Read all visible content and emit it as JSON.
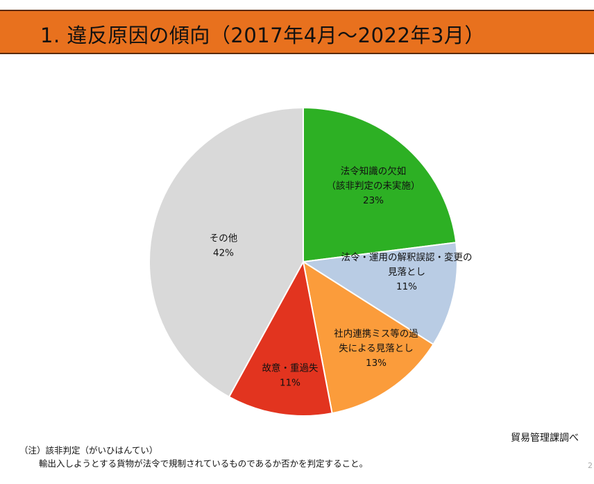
{
  "header": {
    "title": "1. 違反原因の傾向（2017年4月～2022年3月）"
  },
  "chart_data": {
    "type": "pie",
    "start_angle_deg": 0,
    "direction": "clockwise",
    "slices": [
      {
        "lines": [
          "法令知識の欠如",
          "（該非判定の未実施）"
        ],
        "pct_label": "23%",
        "value": 23,
        "color": "#2db024"
      },
      {
        "lines": [
          "法令・運用の解釈誤認・変更の",
          "見落とし"
        ],
        "pct_label": "11%",
        "value": 11,
        "color": "#b9cce4"
      },
      {
        "lines": [
          "社内連携ミス等の過",
          "失による見落とし"
        ],
        "pct_label": "13%",
        "value": 13,
        "color": "#fb9c3b"
      },
      {
        "lines": [
          "故意・重過失"
        ],
        "pct_label": "11%",
        "value": 11,
        "color": "#e2341f"
      },
      {
        "lines": [
          "その他"
        ],
        "pct_label": "42%",
        "value": 42,
        "color": "#d9d9d9"
      }
    ]
  },
  "source": "貿易管理課調べ",
  "notes": {
    "line1": "（注）該非判定（がいひはんてい）",
    "line2": "輸出入しようとする貨物が法令で規制されているものであるか否かを判定すること。"
  },
  "page_number": "2"
}
